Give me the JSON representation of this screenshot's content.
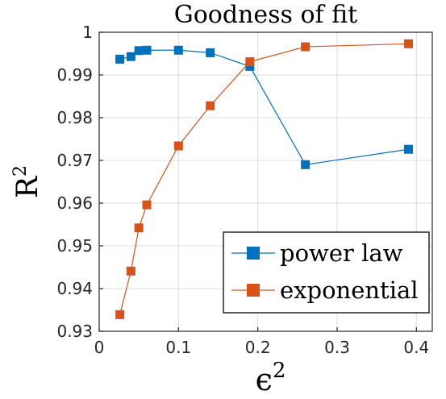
{
  "chart_data": {
    "type": "line",
    "title": "Goodness of fit",
    "xlabel": "ϵ",
    "xlabel_sup": "2",
    "ylabel": "R",
    "ylabel_sup": "2",
    "xlim": [
      0,
      0.42
    ],
    "ylim": [
      0.93,
      1.0
    ],
    "xticks": [
      "0",
      "0.1",
      "0.2",
      "0.3",
      "0.4"
    ],
    "yticks": [
      "0.93",
      "0.94",
      "0.95",
      "0.96",
      "0.97",
      "0.98",
      "0.99",
      "1"
    ],
    "grid": true,
    "legend_position": "bottom-right",
    "series": [
      {
        "name": "power law",
        "color": "#0072BD",
        "marker": "square",
        "x": [
          0.026,
          0.04,
          0.05,
          0.06,
          0.1,
          0.14,
          0.19,
          0.26,
          0.39
        ],
        "y": [
          0.9937,
          0.9943,
          0.9957,
          0.9958,
          0.9958,
          0.9952,
          0.992,
          0.969,
          0.9726
        ]
      },
      {
        "name": "exponential",
        "color": "#D95319",
        "marker": "square",
        "x": [
          0.026,
          0.04,
          0.05,
          0.06,
          0.1,
          0.14,
          0.19,
          0.26,
          0.39
        ],
        "y": [
          0.9339,
          0.9441,
          0.9542,
          0.9596,
          0.9734,
          0.9828,
          0.9931,
          0.9966,
          0.9973
        ]
      }
    ]
  }
}
